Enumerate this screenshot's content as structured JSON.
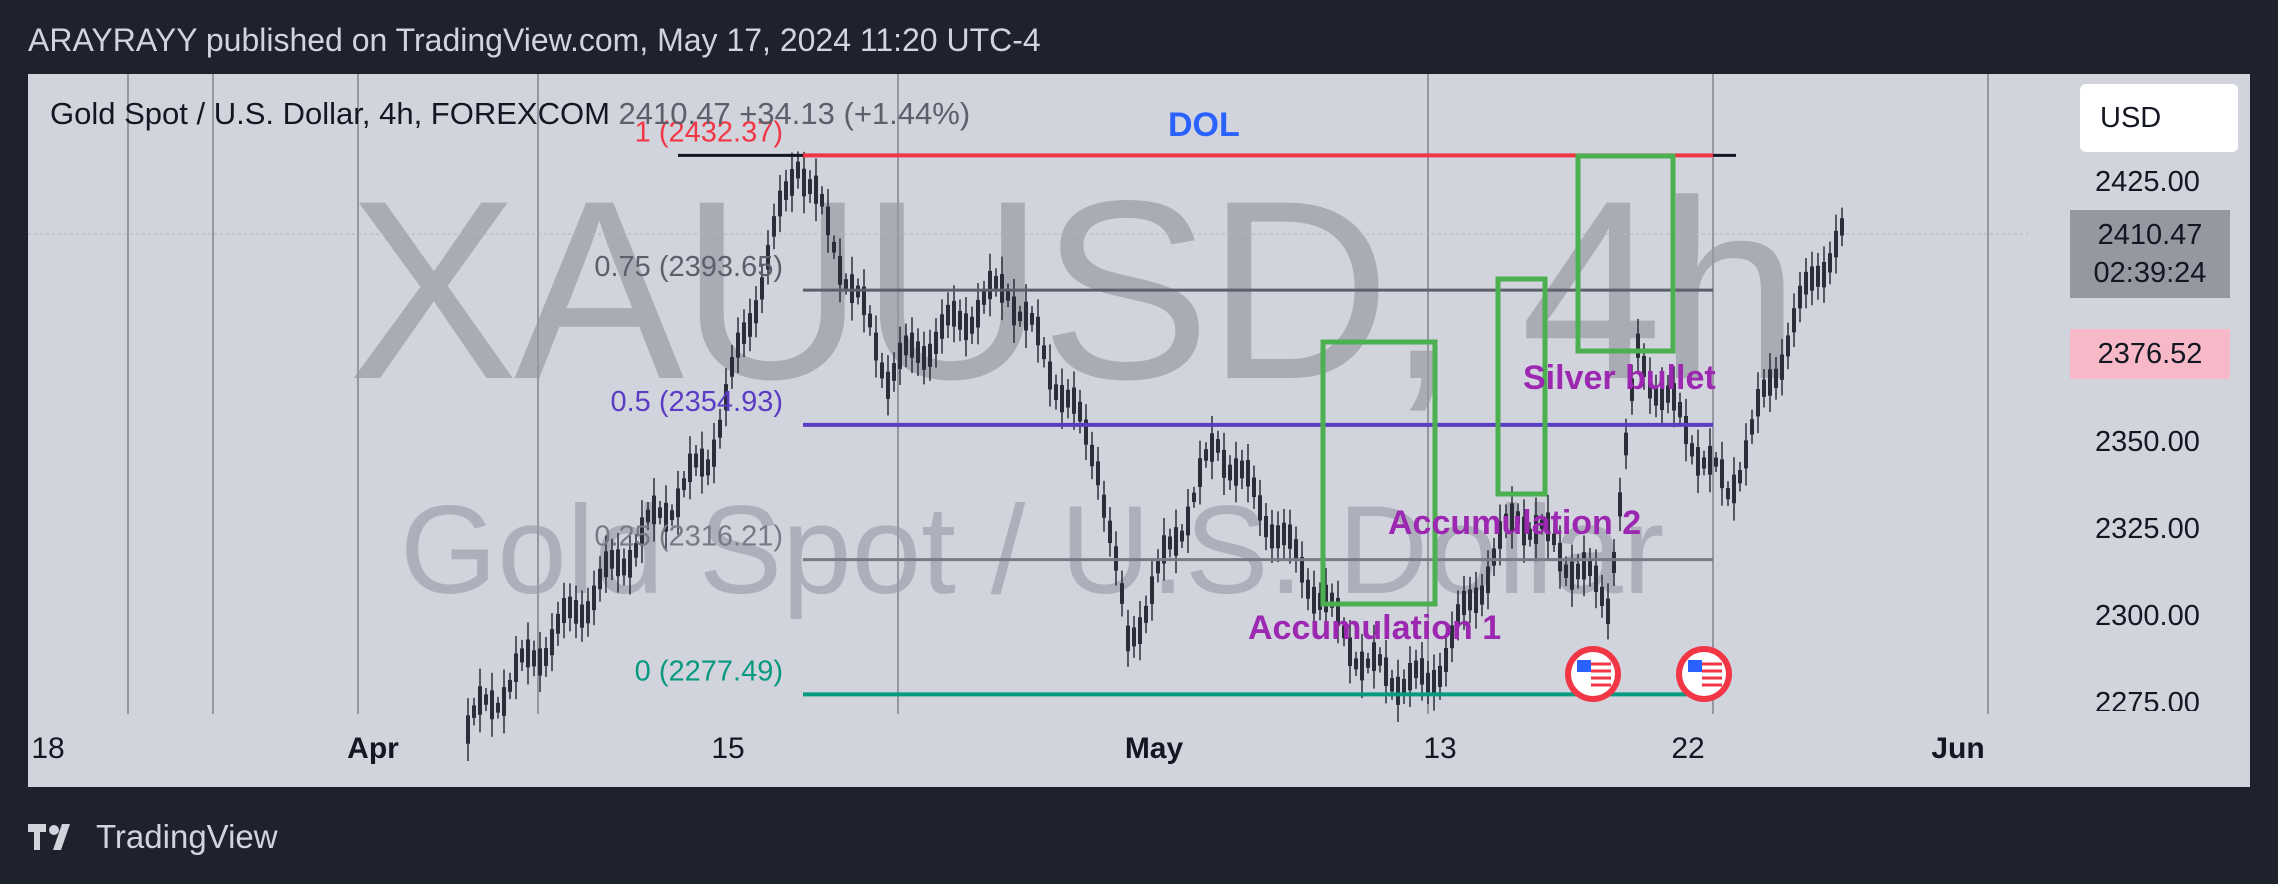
{
  "header": {
    "published_text": "ARAYRAYY published on TradingView.com, May 17, 2024 11:20 UTC-4"
  },
  "toolbar": {
    "symbol_description": "Gold Spot / U.S. Dollar, 4h, FOREXCOM",
    "last_change_text": "2410.47 +34.13 (+1.44%)",
    "currency_label": "USD"
  },
  "watermark": {
    "main": "XAUUSD, 4h",
    "sub": "Gold Spot / U.S. Dollar"
  },
  "price_scale": {
    "last_price": "2410.47",
    "countdown": "02:39:24",
    "level_tag": "2376.52",
    "ticks": [
      "2425.00",
      "2350.00",
      "2325.00",
      "2300.00",
      "2275.00"
    ]
  },
  "time_scale": {
    "ticks": [
      {
        "label": "18",
        "bold": false
      },
      {
        "label": "Apr",
        "bold": true
      },
      {
        "label": "15",
        "bold": false
      },
      {
        "label": "May",
        "bold": true
      },
      {
        "label": "13",
        "bold": false
      },
      {
        "label": "22",
        "bold": false
      },
      {
        "label": "Jun",
        "bold": true
      }
    ]
  },
  "fib_levels": [
    {
      "label": "1 (2432.37)",
      "price": 2432.37,
      "color": "#f23645"
    },
    {
      "label": "0.75 (2393.65)",
      "price": 2393.65,
      "color": "#5d606b"
    },
    {
      "label": "0.5 (2354.93)",
      "price": 2354.93,
      "color": "#5b3cc4"
    },
    {
      "label": "0.25 (2316.21)",
      "price": 2316.21,
      "color": "#787b86"
    },
    {
      "label": "0 (2277.49)",
      "price": 2277.49,
      "color": "#089981"
    }
  ],
  "annotations": {
    "dol": "DOL",
    "silver_bullet": "Silver bullet",
    "accumulation_1": "Accumulation 1",
    "accumulation_2": "Accumulation 2"
  },
  "colors": {
    "background": "#1e222d",
    "chart_bg": "#d1d4dc",
    "candle": "#2a2e39",
    "annotation_purple": "#9c27b0",
    "dol_blue": "#2962ff",
    "box_green": "#4caf50"
  },
  "footer": {
    "brand": "TradingView"
  },
  "chart_data": {
    "type": "candlestick",
    "title": "Gold Spot / U.S. Dollar, 4h, FOREXCOM",
    "y_range": [
      2268,
      2445
    ],
    "series": [
      {
        "name": "close",
        "points": [
          {
            "x": "2024-04-01",
            "y": 2268
          },
          {
            "x": "2024-04-05",
            "y": 2305
          },
          {
            "x": "2024-04-09",
            "y": 2345
          },
          {
            "x": "2024-04-12",
            "y": 2432
          },
          {
            "x": "2024-04-15",
            "y": 2370
          },
          {
            "x": "2024-04-19",
            "y": 2395
          },
          {
            "x": "2024-04-22",
            "y": 2345
          },
          {
            "x": "2024-04-23",
            "y": 2292
          },
          {
            "x": "2024-04-26",
            "y": 2350
          },
          {
            "x": "2024-05-01",
            "y": 2285
          },
          {
            "x": "2024-05-03",
            "y": 2280
          },
          {
            "x": "2024-05-06",
            "y": 2330
          },
          {
            "x": "2024-05-09",
            "y": 2305
          },
          {
            "x": "2024-05-10",
            "y": 2375
          },
          {
            "x": "2024-05-13",
            "y": 2335
          },
          {
            "x": "2024-05-15",
            "y": 2380
          },
          {
            "x": "2024-05-16",
            "y": 2400
          },
          {
            "x": "2024-05-17",
            "y": 2410.47
          }
        ]
      }
    ]
  }
}
